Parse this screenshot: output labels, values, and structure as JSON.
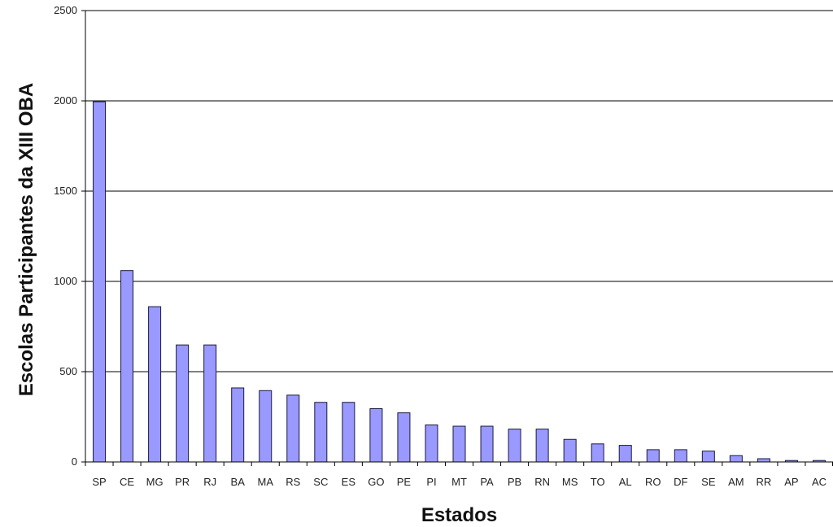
{
  "chart_data": {
    "type": "bar",
    "title": "",
    "xlabel": "Estados",
    "ylabel": "Escolas Participantes da XIII OBA",
    "ylim": [
      0,
      2500
    ],
    "yticks": [
      0,
      500,
      1000,
      1500,
      2000,
      2500
    ],
    "grid": true,
    "categories": [
      "SP",
      "CE",
      "MG",
      "PR",
      "RJ",
      "BA",
      "MA",
      "RS",
      "SC",
      "ES",
      "GO",
      "PE",
      "PI",
      "MT",
      "PA",
      "PB",
      "RN",
      "MS",
      "TO",
      "AL",
      "RO",
      "DF",
      "SE",
      "AM",
      "RR",
      "AP",
      "AC"
    ],
    "values": [
      1995,
      1060,
      860,
      648,
      648,
      410,
      395,
      370,
      330,
      330,
      295,
      272,
      205,
      198,
      198,
      182,
      182,
      125,
      100,
      92,
      68,
      68,
      60,
      35,
      18,
      8,
      8
    ],
    "colors": {
      "bar_fill": "#9999ff",
      "bar_stroke": "#1a1a40",
      "grid": "#000000"
    }
  }
}
